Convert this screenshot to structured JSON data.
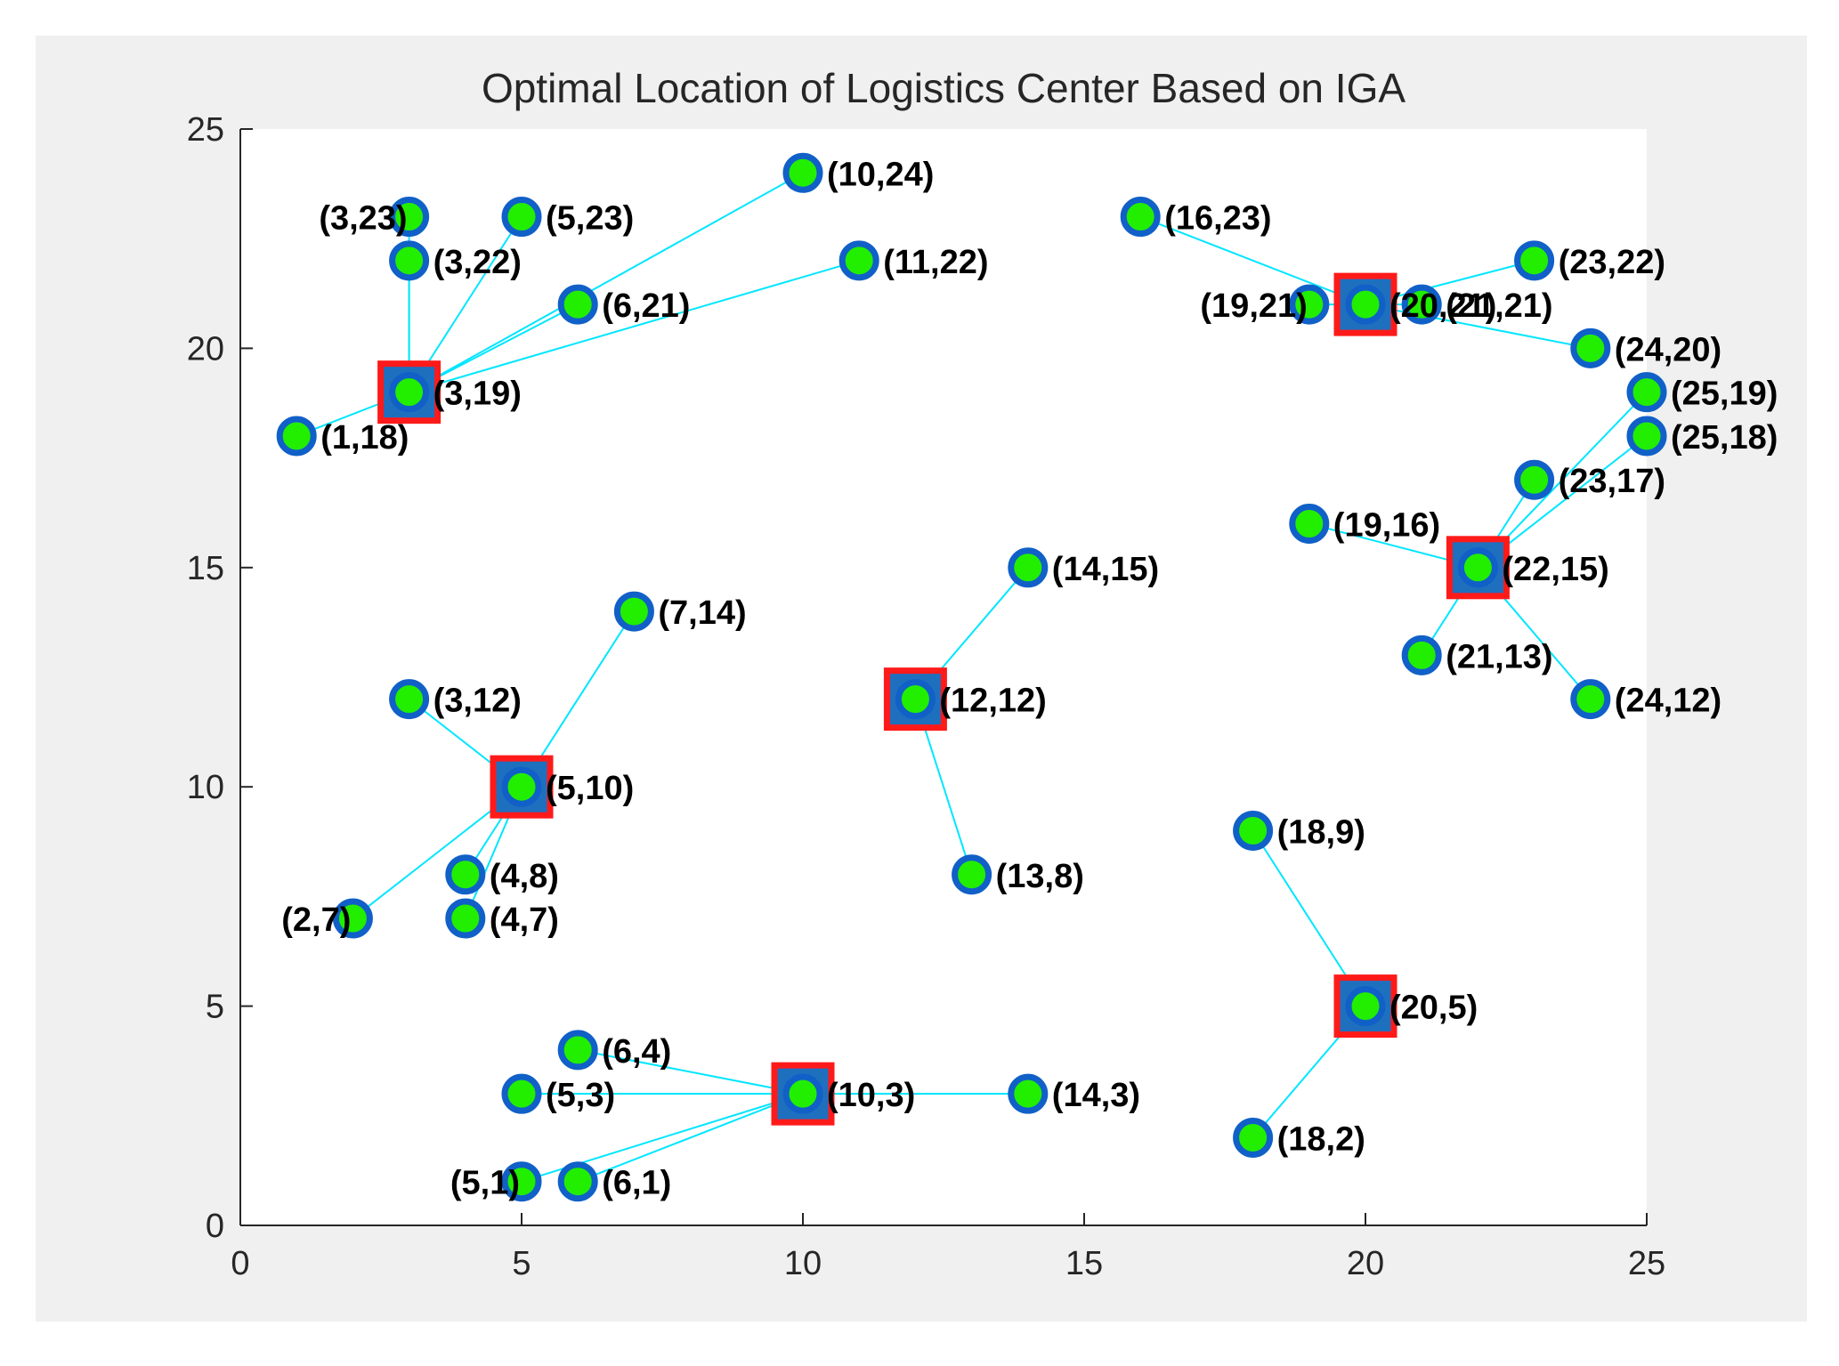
{
  "chart_data": {
    "type": "scatter",
    "title": "Optimal Location of Logistics Center Based on IGA",
    "xlabel": "",
    "ylabel": "",
    "xlim": [
      0,
      25
    ],
    "ylim": [
      0,
      25
    ],
    "xticks": [
      "0",
      "5",
      "10",
      "15",
      "20",
      "25"
    ],
    "yticks": [
      "0",
      "5",
      "10",
      "15",
      "20",
      "25"
    ],
    "grid": false,
    "colors": {
      "line": "#00e6ff",
      "center_fill": "#1f6fbf",
      "center_edge": "#ff1a1a",
      "point_fill": "#22ee00",
      "point_edge": "#1060c8"
    },
    "centers": [
      {
        "x": 3,
        "y": 19,
        "label": "(3,19)",
        "members": [
          [
            1,
            18
          ],
          [
            3,
            22
          ],
          [
            3,
            23
          ],
          [
            5,
            23
          ],
          [
            6,
            21
          ],
          [
            10,
            24
          ],
          [
            11,
            22
          ]
        ]
      },
      {
        "x": 20,
        "y": 21,
        "label": "(20,21)",
        "members": [
          [
            16,
            23
          ],
          [
            19,
            21
          ],
          [
            21,
            21
          ],
          [
            23,
            22
          ],
          [
            24,
            20
          ]
        ]
      },
      {
        "x": 22,
        "y": 15,
        "label": "(22,15)",
        "members": [
          [
            19,
            16
          ],
          [
            21,
            13
          ],
          [
            24,
            12
          ],
          [
            23,
            17
          ],
          [
            25,
            18
          ],
          [
            25,
            19
          ]
        ]
      },
      {
        "x": 12,
        "y": 12,
        "label": "(12,12)",
        "members": [
          [
            14,
            15
          ],
          [
            13,
            8
          ]
        ]
      },
      {
        "x": 5,
        "y": 10,
        "label": "(5,10)",
        "members": [
          [
            7,
            14
          ],
          [
            3,
            12
          ],
          [
            4,
            8
          ],
          [
            4,
            7
          ],
          [
            2,
            7
          ]
        ]
      },
      {
        "x": 20,
        "y": 5,
        "label": "(20,5)",
        "members": [
          [
            18,
            9
          ],
          [
            18,
            2
          ]
        ]
      },
      {
        "x": 10,
        "y": 3,
        "label": "(10,3)",
        "members": [
          [
            6,
            4
          ],
          [
            5,
            3
          ],
          [
            5,
            1
          ],
          [
            6,
            1
          ],
          [
            14,
            3
          ]
        ]
      }
    ],
    "points": [
      {
        "x": 3,
        "y": 23,
        "label": "(3,23)",
        "pos": "left"
      },
      {
        "x": 5,
        "y": 23,
        "label": "(5,23)",
        "pos": "right"
      },
      {
        "x": 3,
        "y": 22,
        "label": "(3,22)",
        "pos": "right"
      },
      {
        "x": 10,
        "y": 24,
        "label": "(10,24)",
        "pos": "right"
      },
      {
        "x": 11,
        "y": 22,
        "label": "(11,22)",
        "pos": "right"
      },
      {
        "x": 6,
        "y": 21,
        "label": "(6,21)",
        "pos": "right"
      },
      {
        "x": 1,
        "y": 18,
        "label": "(1,18)",
        "pos": "right"
      },
      {
        "x": 16,
        "y": 23,
        "label": "(16,23)",
        "pos": "right"
      },
      {
        "x": 19,
        "y": 21,
        "label": "(19,21)",
        "pos": "left"
      },
      {
        "x": 21,
        "y": 21,
        "label": "(21,21)",
        "pos": "right"
      },
      {
        "x": 23,
        "y": 22,
        "label": "(23,22)",
        "pos": "right"
      },
      {
        "x": 24,
        "y": 20,
        "label": "(24,20)",
        "pos": "right"
      },
      {
        "x": 25,
        "y": 19,
        "label": "(25,19)",
        "pos": "right"
      },
      {
        "x": 25,
        "y": 18,
        "label": "(25,18)",
        "pos": "right"
      },
      {
        "x": 23,
        "y": 17,
        "label": "(23,17)",
        "pos": "right"
      },
      {
        "x": 19,
        "y": 16,
        "label": "(19,16)",
        "pos": "right"
      },
      {
        "x": 21,
        "y": 13,
        "label": "(21,13)",
        "pos": "right"
      },
      {
        "x": 24,
        "y": 12,
        "label": "(24,12)",
        "pos": "right"
      },
      {
        "x": 14,
        "y": 15,
        "label": "(14,15)",
        "pos": "right"
      },
      {
        "x": 7,
        "y": 14,
        "label": "(7,14)",
        "pos": "right"
      },
      {
        "x": 3,
        "y": 12,
        "label": "(3,12)",
        "pos": "right"
      },
      {
        "x": 4,
        "y": 8,
        "label": "(4,8)",
        "pos": "right"
      },
      {
        "x": 4,
        "y": 7,
        "label": "(4,7)",
        "pos": "right"
      },
      {
        "x": 2,
        "y": 7,
        "label": "(2,7)",
        "pos": "left"
      },
      {
        "x": 13,
        "y": 8,
        "label": "(13,8)",
        "pos": "right"
      },
      {
        "x": 18,
        "y": 9,
        "label": "(18,9)",
        "pos": "right"
      },
      {
        "x": 18,
        "y": 2,
        "label": "(18,2)",
        "pos": "right"
      },
      {
        "x": 6,
        "y": 4,
        "label": "(6,4)",
        "pos": "right"
      },
      {
        "x": 5,
        "y": 3,
        "label": "(5,3)",
        "pos": "right"
      },
      {
        "x": 14,
        "y": 3,
        "label": "(14,3)",
        "pos": "right"
      },
      {
        "x": 5,
        "y": 1,
        "label": "(5,1)",
        "pos": "left"
      },
      {
        "x": 6,
        "y": 1,
        "label": "(6,1)",
        "pos": "right"
      }
    ]
  }
}
